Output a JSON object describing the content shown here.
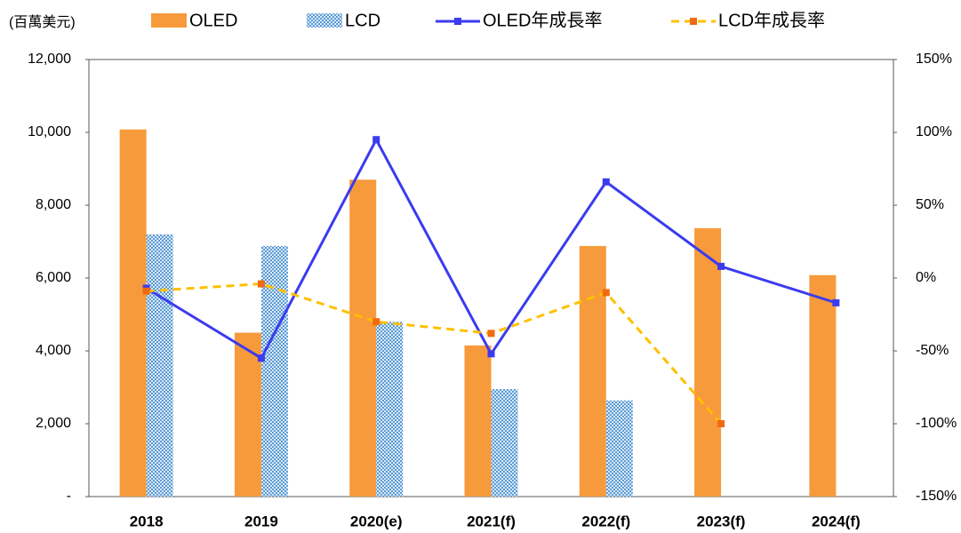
{
  "chart_data": {
    "type": "bar_line",
    "y_label": "(百萬美元)",
    "categories": [
      "2018",
      "2019",
      "2020(e)",
      "2021(f)",
      "2022(f)",
      "2023(f)",
      "2024(f)"
    ],
    "series": [
      {
        "name": "OLED",
        "kind": "bar",
        "color": "#f79a3b",
        "values": [
          10080,
          4500,
          8700,
          4150,
          6880,
          7370,
          6080
        ]
      },
      {
        "name": "LCD",
        "kind": "bar",
        "color": "#5b9bd5",
        "values": [
          7200,
          6880,
          4800,
          2950,
          2640,
          null,
          null
        ]
      },
      {
        "name": "OLED年成長率",
        "kind": "line",
        "axis": "y2",
        "color": "#3b3bef",
        "values": [
          -7,
          -55,
          95,
          -52,
          66,
          8,
          -17
        ]
      },
      {
        "name": "LCD年成長率",
        "kind": "line",
        "axis": "y2",
        "color": "#ffc000",
        "marker_color": "#f26a10",
        "dashed": true,
        "values": [
          -9,
          -4,
          -30,
          -38,
          -10,
          -100,
          null
        ]
      }
    ],
    "ylim": [
      0,
      12000
    ],
    "yticks": [
      {
        "value": 0,
        "label": "-"
      },
      {
        "value": 2000,
        "label": "2,000"
      },
      {
        "value": 4000,
        "label": "4,000"
      },
      {
        "value": 6000,
        "label": "6,000"
      },
      {
        "value": 8000,
        "label": "8,000"
      },
      {
        "value": 10000,
        "label": "10,000"
      },
      {
        "value": 12000,
        "label": "12,000"
      }
    ],
    "y2lim": [
      -150,
      150
    ],
    "y2ticks": [
      {
        "value": -150,
        "label": "-150%"
      },
      {
        "value": -100,
        "label": "-100%"
      },
      {
        "value": -50,
        "label": "-50%"
      },
      {
        "value": 0,
        "label": "0%"
      },
      {
        "value": 50,
        "label": "50%"
      },
      {
        "value": 100,
        "label": "100%"
      },
      {
        "value": 150,
        "label": "150%"
      }
    ]
  }
}
